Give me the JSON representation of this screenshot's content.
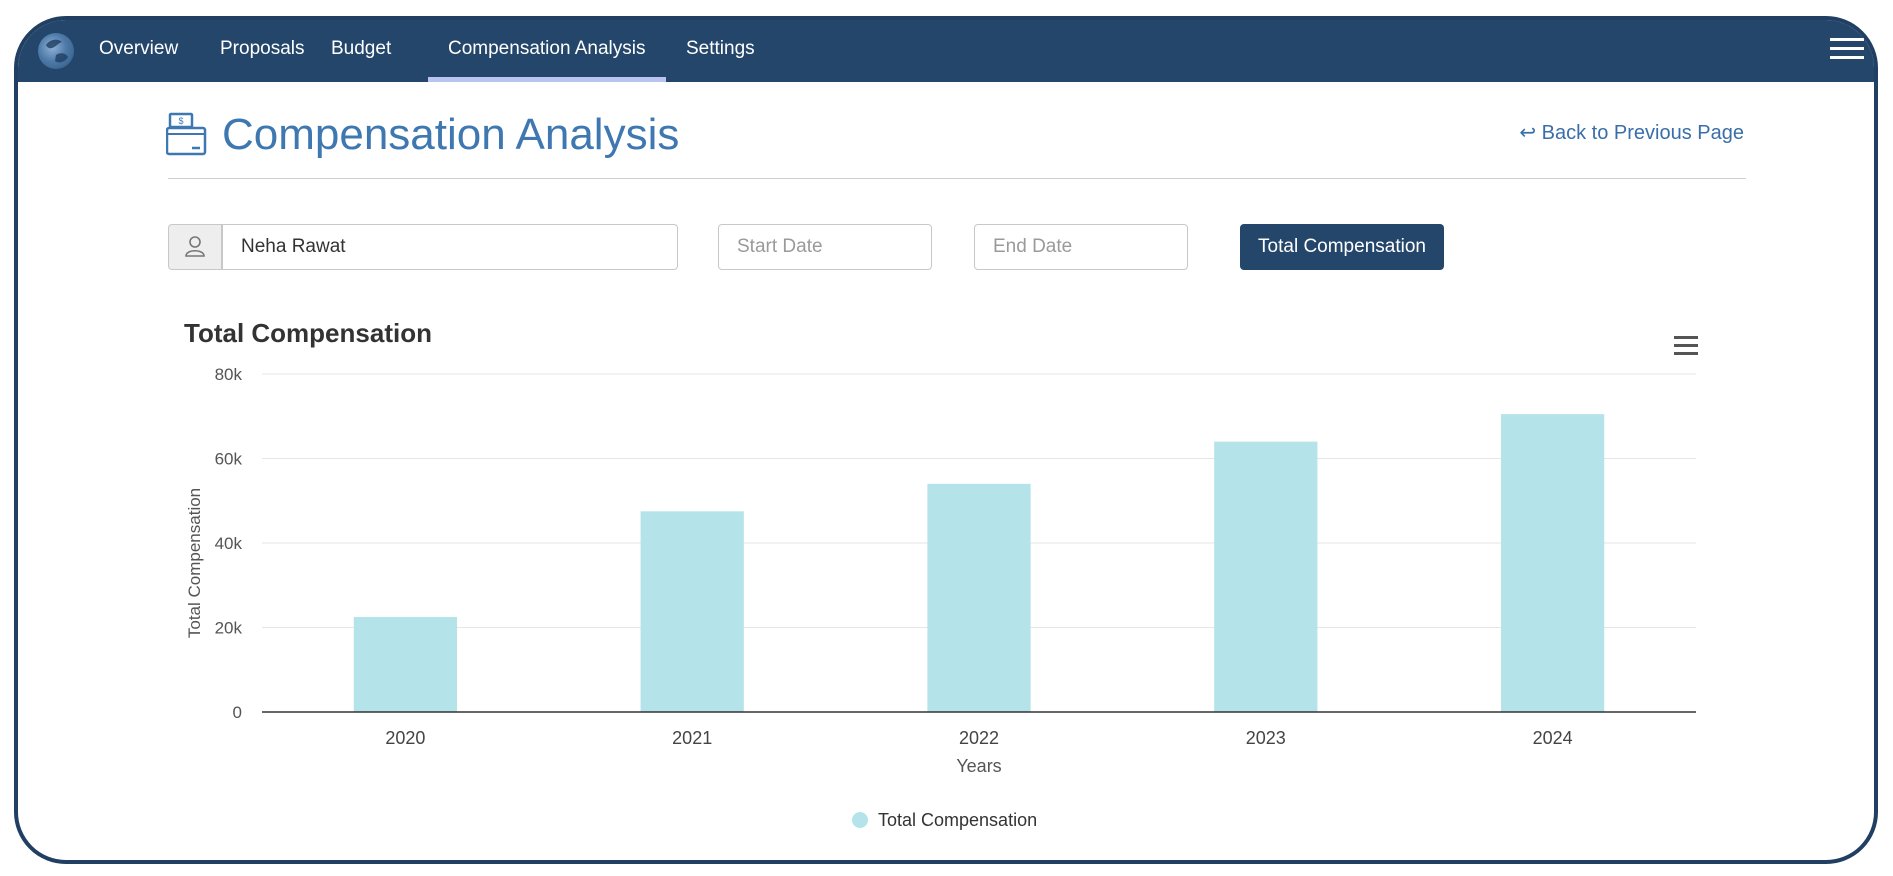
{
  "nav": {
    "items": [
      {
        "label": "Overview"
      },
      {
        "label": "Proposals"
      },
      {
        "label": "Budget"
      },
      {
        "label": "Compensation Analysis"
      },
      {
        "label": "Settings"
      }
    ],
    "active_index": 3
  },
  "page": {
    "title": "Compensation Analysis",
    "back_link": "↩ Back to Previous Page"
  },
  "filters": {
    "employee_value": "Neha Rawat",
    "start_date_placeholder": "Start Date",
    "end_date_placeholder": "End Date",
    "submit_label": "Total Compensation"
  },
  "colors": {
    "nav_bg": "#24466b",
    "accent": "#3f78b1",
    "bar": "#b5e3ea"
  },
  "chart_data": {
    "type": "bar",
    "title": "Total Compensation",
    "categories": [
      "2020",
      "2021",
      "2022",
      "2023",
      "2024"
    ],
    "series": [
      {
        "name": "Total Compensation",
        "values": [
          22500,
          47500,
          54000,
          64000,
          70500
        ]
      }
    ],
    "xlabel": "Years",
    "ylabel": "Total Compensation",
    "ylim": [
      0,
      80000
    ],
    "yticks": [
      0,
      20000,
      40000,
      60000,
      80000
    ],
    "ytick_labels": [
      "0",
      "20k",
      "40k",
      "60k",
      "80k"
    ],
    "grid": true,
    "legend": "bottom-center"
  }
}
